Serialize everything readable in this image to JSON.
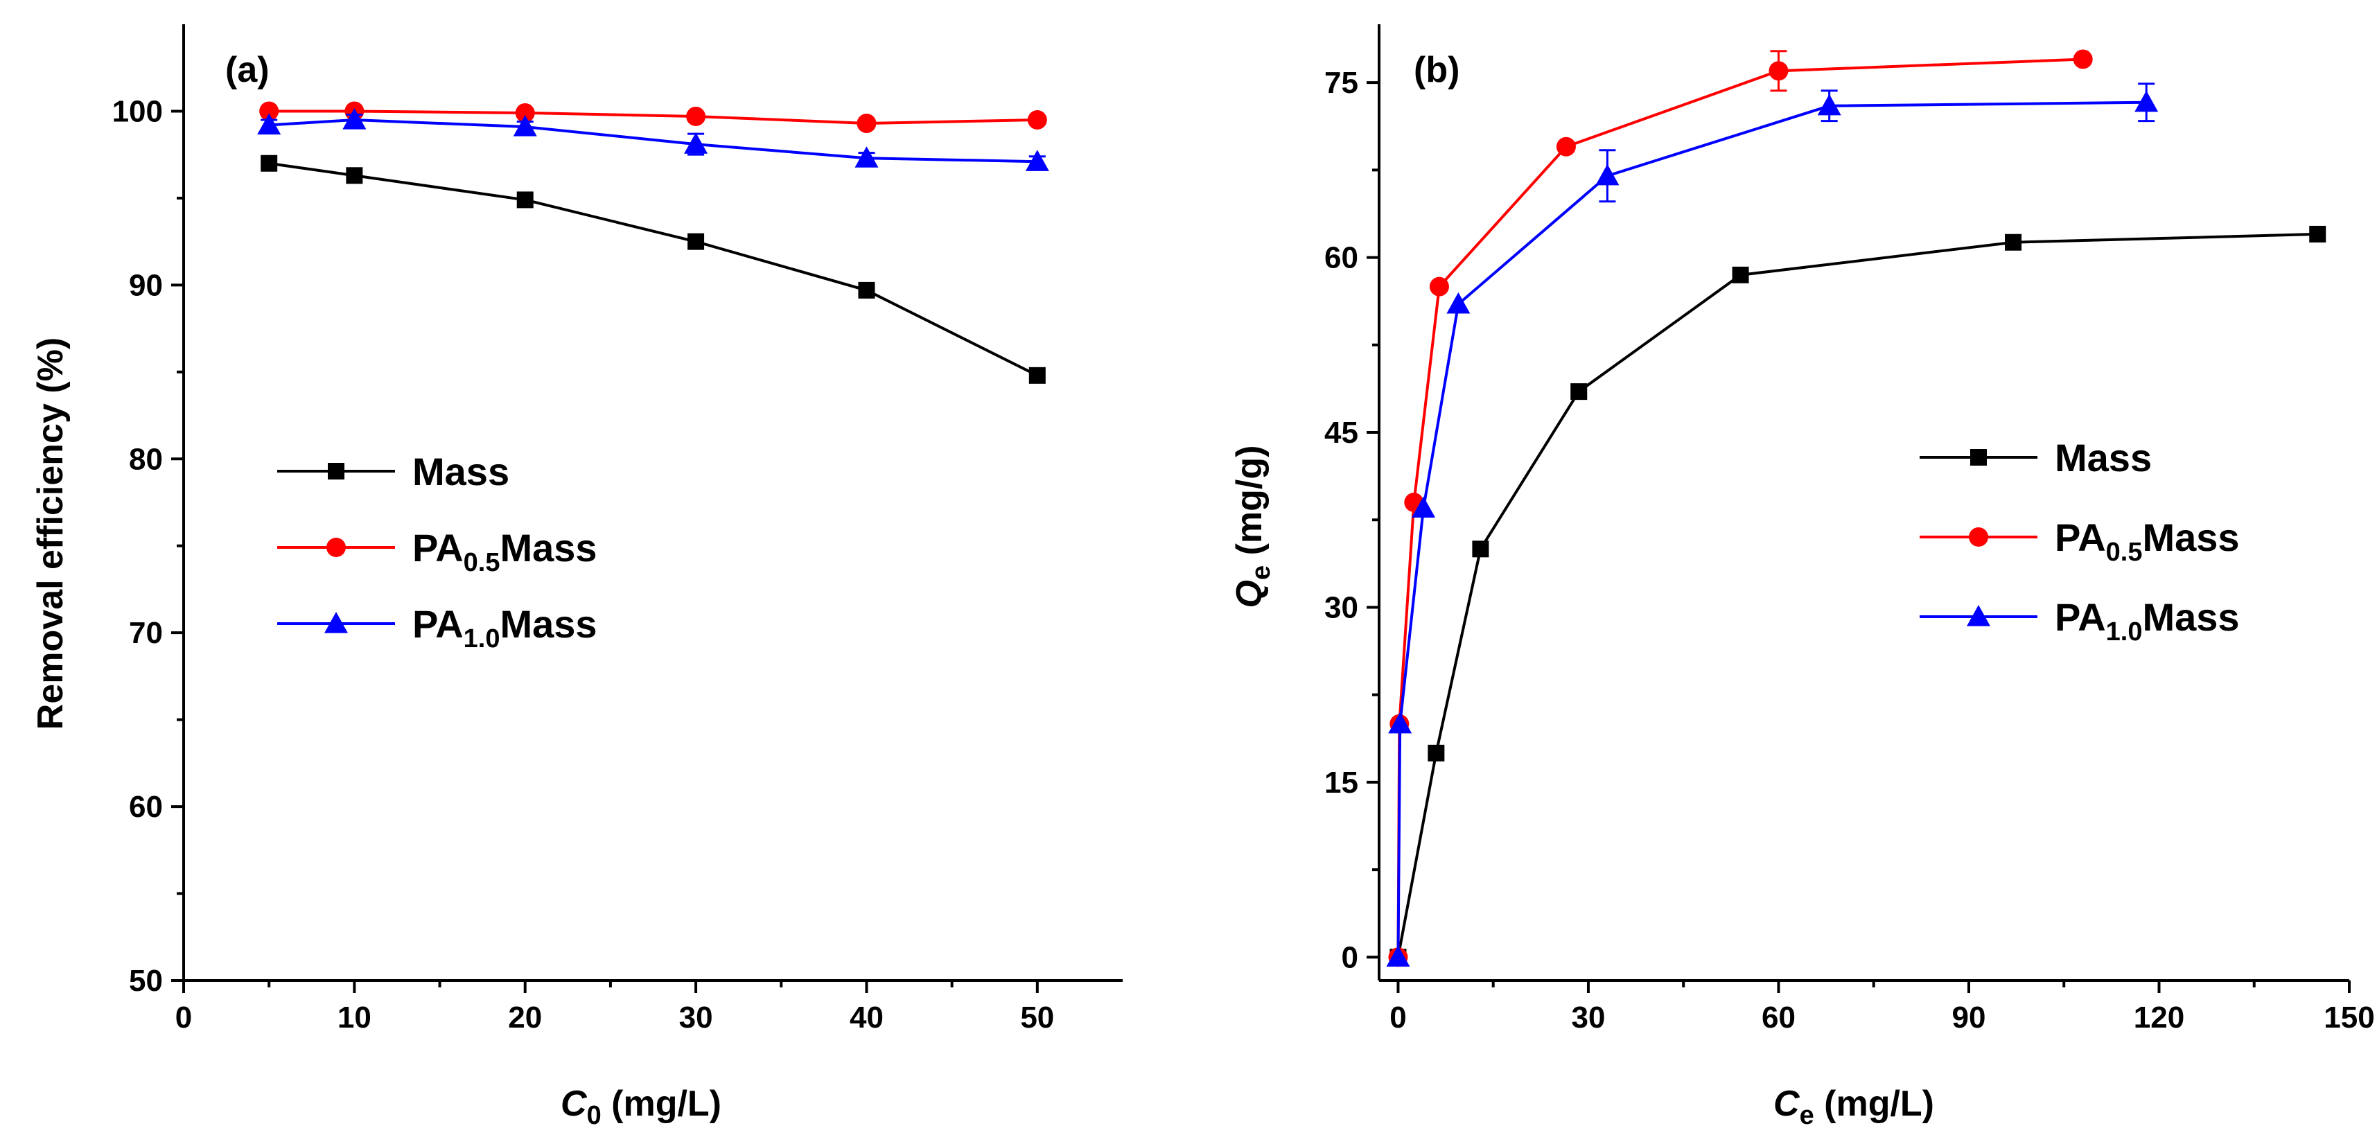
{
  "chart_data": [
    {
      "panel": "(a)",
      "type": "line",
      "xlabel": {
        "main": "C",
        "sub": "0",
        "unit": " (mg/L)"
      },
      "ylabel": "Removal efficiency (%)",
      "xlim": [
        0,
        55
      ],
      "ylim": [
        50,
        105
      ],
      "xticks": [
        0,
        10,
        20,
        30,
        40,
        50
      ],
      "yticks": [
        50,
        60,
        70,
        80,
        90,
        100
      ],
      "legend": {
        "position": "center-left"
      },
      "series": [
        {
          "name": "Mass",
          "label_main": "Mass",
          "label_sub": "",
          "label_tail": "",
          "color": "#000000",
          "marker": "square",
          "x": [
            5,
            10,
            20,
            30,
            40,
            50
          ],
          "y": [
            97.0,
            96.3,
            94.9,
            92.5,
            89.7,
            84.8
          ],
          "err": [
            0,
            0,
            0,
            0,
            0,
            0
          ]
        },
        {
          "name": "PA0.5Mass",
          "label_main": "PA",
          "label_sub": "0.5",
          "label_tail": "Mass",
          "color": "#ff0000",
          "marker": "circle",
          "x": [
            5,
            10,
            20,
            30,
            40,
            50
          ],
          "y": [
            100.0,
            100.0,
            99.9,
            99.7,
            99.3,
            99.5
          ],
          "err": [
            0,
            0,
            0,
            0,
            0,
            0
          ]
        },
        {
          "name": "PA1.0Mass",
          "label_main": "PA",
          "label_sub": "1.0",
          "label_tail": "Mass",
          "color": "#0000ff",
          "marker": "triangle",
          "x": [
            5,
            10,
            20,
            30,
            40,
            50
          ],
          "y": [
            99.2,
            99.5,
            99.1,
            98.1,
            97.3,
            97.1
          ],
          "err": [
            0.3,
            0.3,
            0.3,
            0.6,
            0.3,
            0.3
          ]
        }
      ]
    },
    {
      "panel": "(b)",
      "type": "line",
      "xlabel": {
        "main": "C",
        "sub": "e",
        "unit": " (mg/L)"
      },
      "ylabel": {
        "main": "Q",
        "sub": "e",
        "unit": " (mg/g)"
      },
      "xlim": [
        -3,
        150
      ],
      "ylim": [
        -2,
        80
      ],
      "xticks": [
        0,
        30,
        60,
        90,
        120,
        150
      ],
      "yticks": [
        0,
        15,
        30,
        45,
        60,
        75
      ],
      "legend": {
        "position": "center-right"
      },
      "series": [
        {
          "name": "Mass",
          "label_main": "Mass",
          "label_sub": "",
          "label_tail": "",
          "color": "#000000",
          "marker": "square",
          "x": [
            0,
            6,
            13,
            28.5,
            54,
            97,
            145
          ],
          "y": [
            0,
            17.5,
            35,
            48.5,
            58.5,
            61.3,
            62
          ],
          "err": [
            0,
            0,
            0,
            0,
            0,
            0,
            0
          ]
        },
        {
          "name": "PA0.5Mass",
          "label_main": "PA",
          "label_sub": "0.5",
          "label_tail": "Mass",
          "color": "#ff0000",
          "marker": "circle",
          "x": [
            0,
            0.2,
            2.5,
            6.5,
            26.5,
            60,
            108
          ],
          "y": [
            0,
            20,
            39,
            57.5,
            69.5,
            76,
            77
          ],
          "err": [
            0,
            0,
            0,
            0,
            0,
            1.7,
            0
          ]
        },
        {
          "name": "PA1.0Mass",
          "label_main": "PA",
          "label_sub": "1.0",
          "label_tail": "Mass",
          "color": "#0000ff",
          "marker": "triangle",
          "x": [
            0,
            0.3,
            4,
            9.5,
            33,
            68,
            118
          ],
          "y": [
            0,
            20,
            38.5,
            56,
            67,
            73,
            73.3
          ],
          "err": [
            0,
            0,
            0,
            0,
            2.2,
            1.3,
            1.6
          ]
        }
      ]
    }
  ]
}
